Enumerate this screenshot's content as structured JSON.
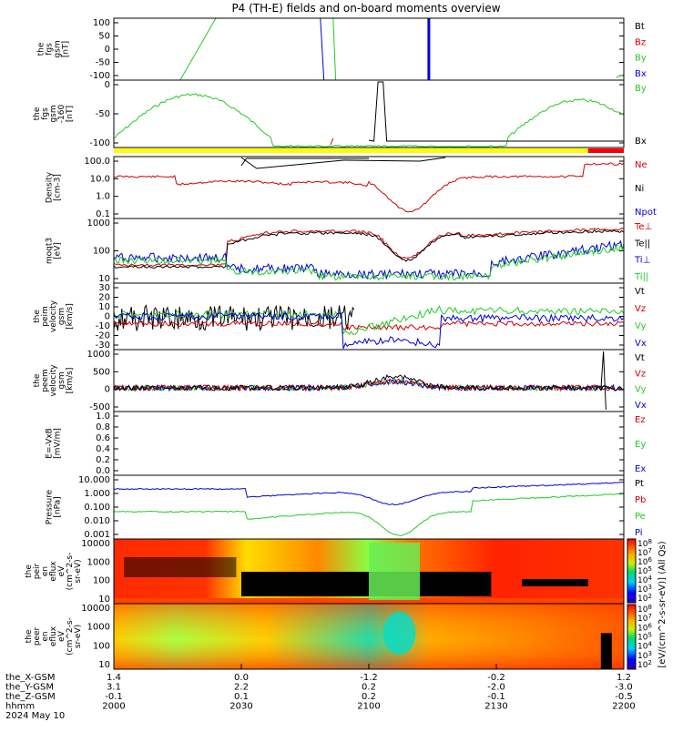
{
  "title": "P4 (TH-E) fields and on-board moments overview",
  "footer_rows": [
    {
      "label": "the_X-GSM",
      "values": [
        "1.4",
        "0.0",
        "-1.2",
        "-0.2",
        "1.2"
      ]
    },
    {
      "label": "the_Y-GSM",
      "values": [
        "3.1",
        "2.2",
        "0.2",
        "-2.0",
        "-3.0"
      ]
    },
    {
      "label": "the_Z-GSM",
      "values": [
        "-0.1",
        "0.1",
        "0.2",
        "-0.1",
        "-0.5"
      ]
    },
    {
      "label": "hhmm",
      "values": [
        "2000",
        "2030",
        "2100",
        "2130",
        "2200"
      ]
    }
  ],
  "date_label": "2024 May 10",
  "colorbar_label": "[eV/(cm^2-s-sr-eV)] (All Qs)",
  "colorbar1_ticks": [
    "10^8",
    "10^7",
    "10^6",
    "10^5",
    "10^4",
    "10^3",
    "10^2"
  ],
  "colorbar2_ticks": [
    "10^8",
    "10^7",
    "10^6",
    "10^5",
    "10^4",
    "10^3",
    "10^2"
  ],
  "colors": {
    "black": "#000000",
    "red": "#d00000",
    "green": "#22cc22",
    "blue": "#0000dd",
    "yellow": "#ffff00"
  },
  "chart_data": [
    {
      "type": "line",
      "ylabel": [
        "the",
        "fgs",
        "gsm",
        "[nT]"
      ],
      "ylim": [
        -100,
        100
      ],
      "yticks": [
        "100",
        "50",
        "0",
        "-50",
        "-100"
      ],
      "legend": [
        {
          "name": "Bt",
          "color": "#000000"
        },
        {
          "name": "Bz",
          "color": "#d00000"
        },
        {
          "name": "By",
          "color": "#22cc22"
        },
        {
          "name": "Bx",
          "color": "#0000dd"
        }
      ]
    },
    {
      "type": "line",
      "ylabel": [
        "the",
        "fgs",
        "gsm",
        "-160",
        "[nT]"
      ],
      "ylim": [
        -120,
        0
      ],
      "yticks": [
        "0",
        "-50",
        "-100"
      ],
      "legend": [
        {
          "name": "By",
          "color": "#22cc22"
        },
        {
          "name": "Bx",
          "color": "#000000"
        }
      ]
    },
    {
      "type": "line",
      "ylabel": [
        "Density",
        "[cm-3]"
      ],
      "ylim": [
        0.03,
        120
      ],
      "yticks": [
        "100.0",
        "10.0",
        "1.0",
        "0.1"
      ],
      "legend": [
        {
          "name": "Ne",
          "color": "#d00000"
        },
        {
          "name": "Ni",
          "color": "#000000"
        },
        {
          "name": "Npot",
          "color": "#0000dd"
        }
      ]
    },
    {
      "type": "line",
      "ylabel": [
        "moqt3",
        "[eV]"
      ],
      "ylim": [
        10,
        4000
      ],
      "yticks": [
        "1000",
        "100",
        "10"
      ],
      "legend": [
        {
          "name": "Te⊥",
          "color": "#d00000"
        },
        {
          "name": "Te||",
          "color": "#000000"
        },
        {
          "name": "Ti⊥",
          "color": "#0000dd"
        },
        {
          "name": "Ti||",
          "color": "#22cc22"
        }
      ]
    },
    {
      "type": "line",
      "ylabel": [
        "the",
        "peim",
        "velocity",
        "gsm",
        "[km/s]"
      ],
      "ylim": [
        -35,
        35
      ],
      "yticks": [
        "30",
        "20",
        "10",
        "0",
        "-10",
        "-20",
        "-30"
      ],
      "legend": [
        {
          "name": "Vt",
          "color": "#000000"
        },
        {
          "name": "Vz",
          "color": "#d00000"
        },
        {
          "name": "Vy",
          "color": "#22cc22"
        },
        {
          "name": "Vx",
          "color": "#0000dd"
        }
      ]
    },
    {
      "type": "line",
      "ylabel": [
        "the",
        "peem",
        "velocity",
        "gsm",
        "[km/s]"
      ],
      "ylim": [
        -700,
        1400
      ],
      "yticks": [
        "1000",
        "500",
        "0",
        "-500"
      ],
      "legend": [
        {
          "name": "Vt",
          "color": "#000000"
        },
        {
          "name": "Vz",
          "color": "#d00000"
        },
        {
          "name": "Vy",
          "color": "#22cc22"
        },
        {
          "name": "Vx",
          "color": "#0000dd"
        }
      ]
    },
    {
      "type": "line",
      "ylabel": [
        "E=-VxB",
        "[mV/m]"
      ],
      "ylim": [
        0,
        1
      ],
      "yticks": [
        "1.0",
        "0.8",
        "0.6",
        "0.4",
        "0.2",
        "0.0"
      ],
      "legend": [
        {
          "name": "Ez",
          "color": "#d00000"
        },
        {
          "name": "Ey",
          "color": "#22cc22"
        },
        {
          "name": "Ex",
          "color": "#0000dd"
        }
      ]
    },
    {
      "type": "line",
      "ylabel": [
        "Pressure",
        "[nPa]"
      ],
      "ylim": [
        0.0005,
        30
      ],
      "yticks": [
        "10.000",
        "1.000",
        "0.100",
        "0.010",
        "0.001"
      ],
      "legend": [
        {
          "name": "Pt",
          "color": "#000000"
        },
        {
          "name": "Pb",
          "color": "#d00000"
        },
        {
          "name": "Pe",
          "color": "#22cc22"
        },
        {
          "name": "Pi",
          "color": "#0000dd"
        }
      ]
    },
    {
      "type": "heatmap",
      "ylabel": [
        "the",
        "peir",
        "en",
        "eflux",
        "eV",
        "(cm^2-s-",
        "sr-eV)"
      ],
      "ylim": [
        6,
        20000
      ],
      "yticks": [
        "10000",
        "1000",
        "100",
        "10"
      ]
    },
    {
      "type": "heatmap",
      "ylabel": [
        "the",
        "peer",
        "en",
        "eflux",
        "eV",
        "(cm^2-s-",
        "sr-eV)"
      ],
      "ylim": [
        6,
        20000
      ],
      "yticks": [
        "10000",
        "1000",
        "100",
        "10"
      ]
    }
  ]
}
